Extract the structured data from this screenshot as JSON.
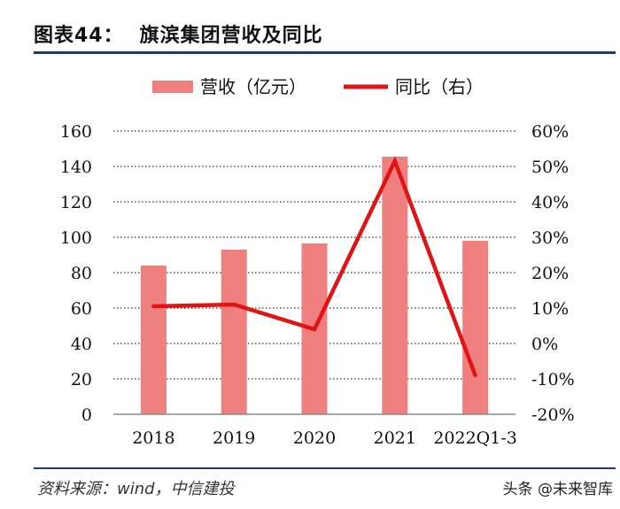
{
  "header": {
    "figure_no": "图表44：",
    "title": "旗滨集团营收及同比"
  },
  "footer": {
    "source": "资料来源：wind，中信建投",
    "watermark": "头条 @未来智库"
  },
  "colors": {
    "bar": "#f08080",
    "line": "#e01414",
    "rule": "#1f3b66",
    "grid": "#000000"
  },
  "chart_data": {
    "type": "bar",
    "title": "旗滨集团营收及同比",
    "categories": [
      "2018",
      "2019",
      "2020",
      "2021",
      "2022Q1-3"
    ],
    "series": [
      {
        "name": "营收（亿元）",
        "type": "bar",
        "axis": "left",
        "values": [
          84,
          93,
          96.5,
          145.5,
          98
        ]
      },
      {
        "name": "同比（右）",
        "type": "line",
        "axis": "right",
        "values": [
          10.5,
          11,
          4,
          51.5,
          -9
        ]
      }
    ],
    "y_left": {
      "min": 0,
      "max": 160,
      "ticks": [
        0,
        20,
        40,
        60,
        80,
        100,
        120,
        140,
        160
      ]
    },
    "y_right": {
      "min": -20,
      "max": 60,
      "ticks": [
        -20,
        -10,
        0,
        10,
        20,
        30,
        40,
        50,
        60
      ],
      "tick_labels": [
        "-20%",
        "-10%",
        "0%",
        "10%",
        "20%",
        "30%",
        "40%",
        "50%",
        "60%"
      ]
    },
    "grid": true,
    "legend": "top-center"
  }
}
